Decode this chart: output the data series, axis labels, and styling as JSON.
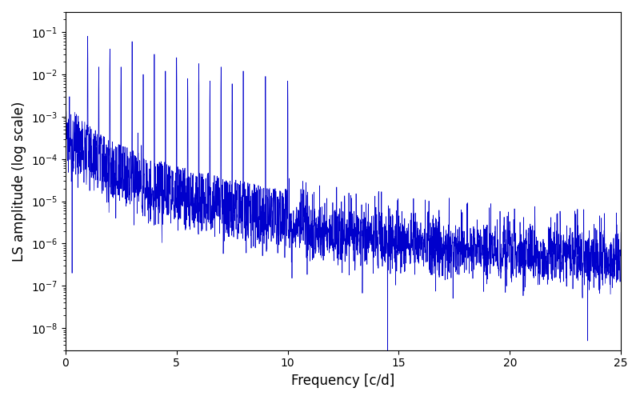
{
  "xlabel": "Frequency [c/d]",
  "ylabel": "LS amplitude (log scale)",
  "xlim": [
    0,
    25
  ],
  "ylim": [
    3e-09,
    0.3
  ],
  "line_color": "#0000cc",
  "line_width": 0.5,
  "figsize": [
    8.0,
    5.0
  ],
  "dpi": 100,
  "xticks": [
    0,
    5,
    10,
    15,
    20,
    25
  ],
  "background_color": "#ffffff"
}
